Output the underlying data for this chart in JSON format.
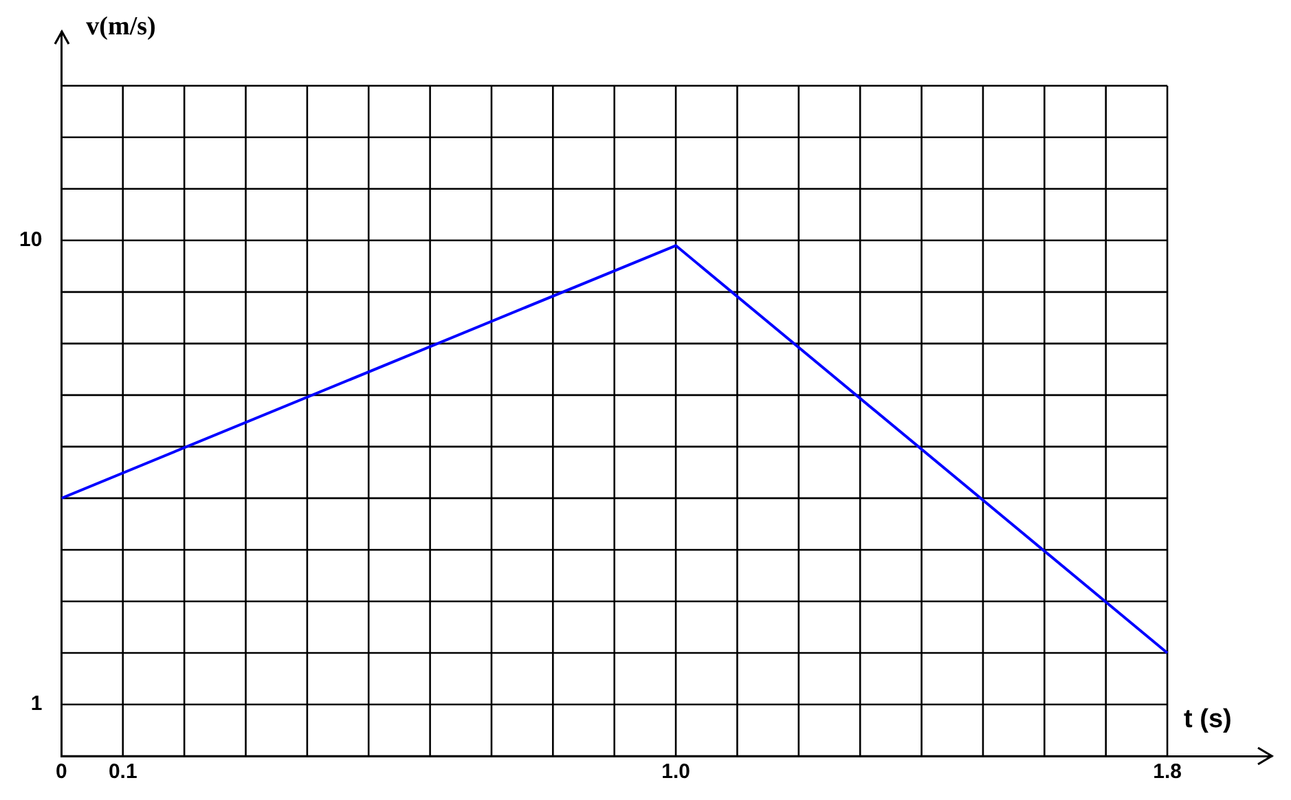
{
  "chart_data": {
    "type": "line",
    "xlabel": "t (s)",
    "ylabel": "v(m/s)",
    "x": [
      0,
      1.0,
      1.8
    ],
    "series": [
      {
        "color": "#0000ff",
        "values": [
          5,
          9.9,
          2
        ]
      }
    ],
    "xlim": [
      0,
      1.97
    ],
    "ylim": [
      0,
      14.05
    ],
    "xticks": [
      {
        "value": 0,
        "label": "0"
      },
      {
        "value": 0.1,
        "label": "0.1"
      },
      {
        "value": 0.2,
        "label": null
      },
      {
        "value": 0.3,
        "label": null
      },
      {
        "value": 0.4,
        "label": null
      },
      {
        "value": 0.5,
        "label": null
      },
      {
        "value": 0.6,
        "label": null
      },
      {
        "value": 0.7,
        "label": null
      },
      {
        "value": 0.8,
        "label": null
      },
      {
        "value": 0.9,
        "label": null
      },
      {
        "value": 1.0,
        "label": "1.0"
      },
      {
        "value": 1.1,
        "label": null
      },
      {
        "value": 1.2,
        "label": null
      },
      {
        "value": 1.3,
        "label": null
      },
      {
        "value": 1.4,
        "label": null
      },
      {
        "value": 1.5,
        "label": null
      },
      {
        "value": 1.6,
        "label": null
      },
      {
        "value": 1.7,
        "label": null
      },
      {
        "value": 1.8,
        "label": "1.8"
      }
    ],
    "yticks": [
      {
        "value": 0,
        "label": null
      },
      1,
      {
        "value": 2,
        "label": null
      },
      {
        "value": 3,
        "label": null
      },
      {
        "value": 4,
        "label": null
      },
      {
        "value": 5,
        "label": null
      },
      {
        "value": 6,
        "label": null
      },
      {
        "value": 7,
        "label": null
      },
      {
        "value": 8,
        "label": null
      },
      {
        "value": 9,
        "label": null
      },
      10,
      {
        "value": 11,
        "label": null
      },
      {
        "value": 12,
        "label": null
      },
      {
        "value": 13,
        "label": null
      }
    ],
    "grid": true,
    "legend": false,
    "marker": "none",
    "line_style": "solid"
  }
}
